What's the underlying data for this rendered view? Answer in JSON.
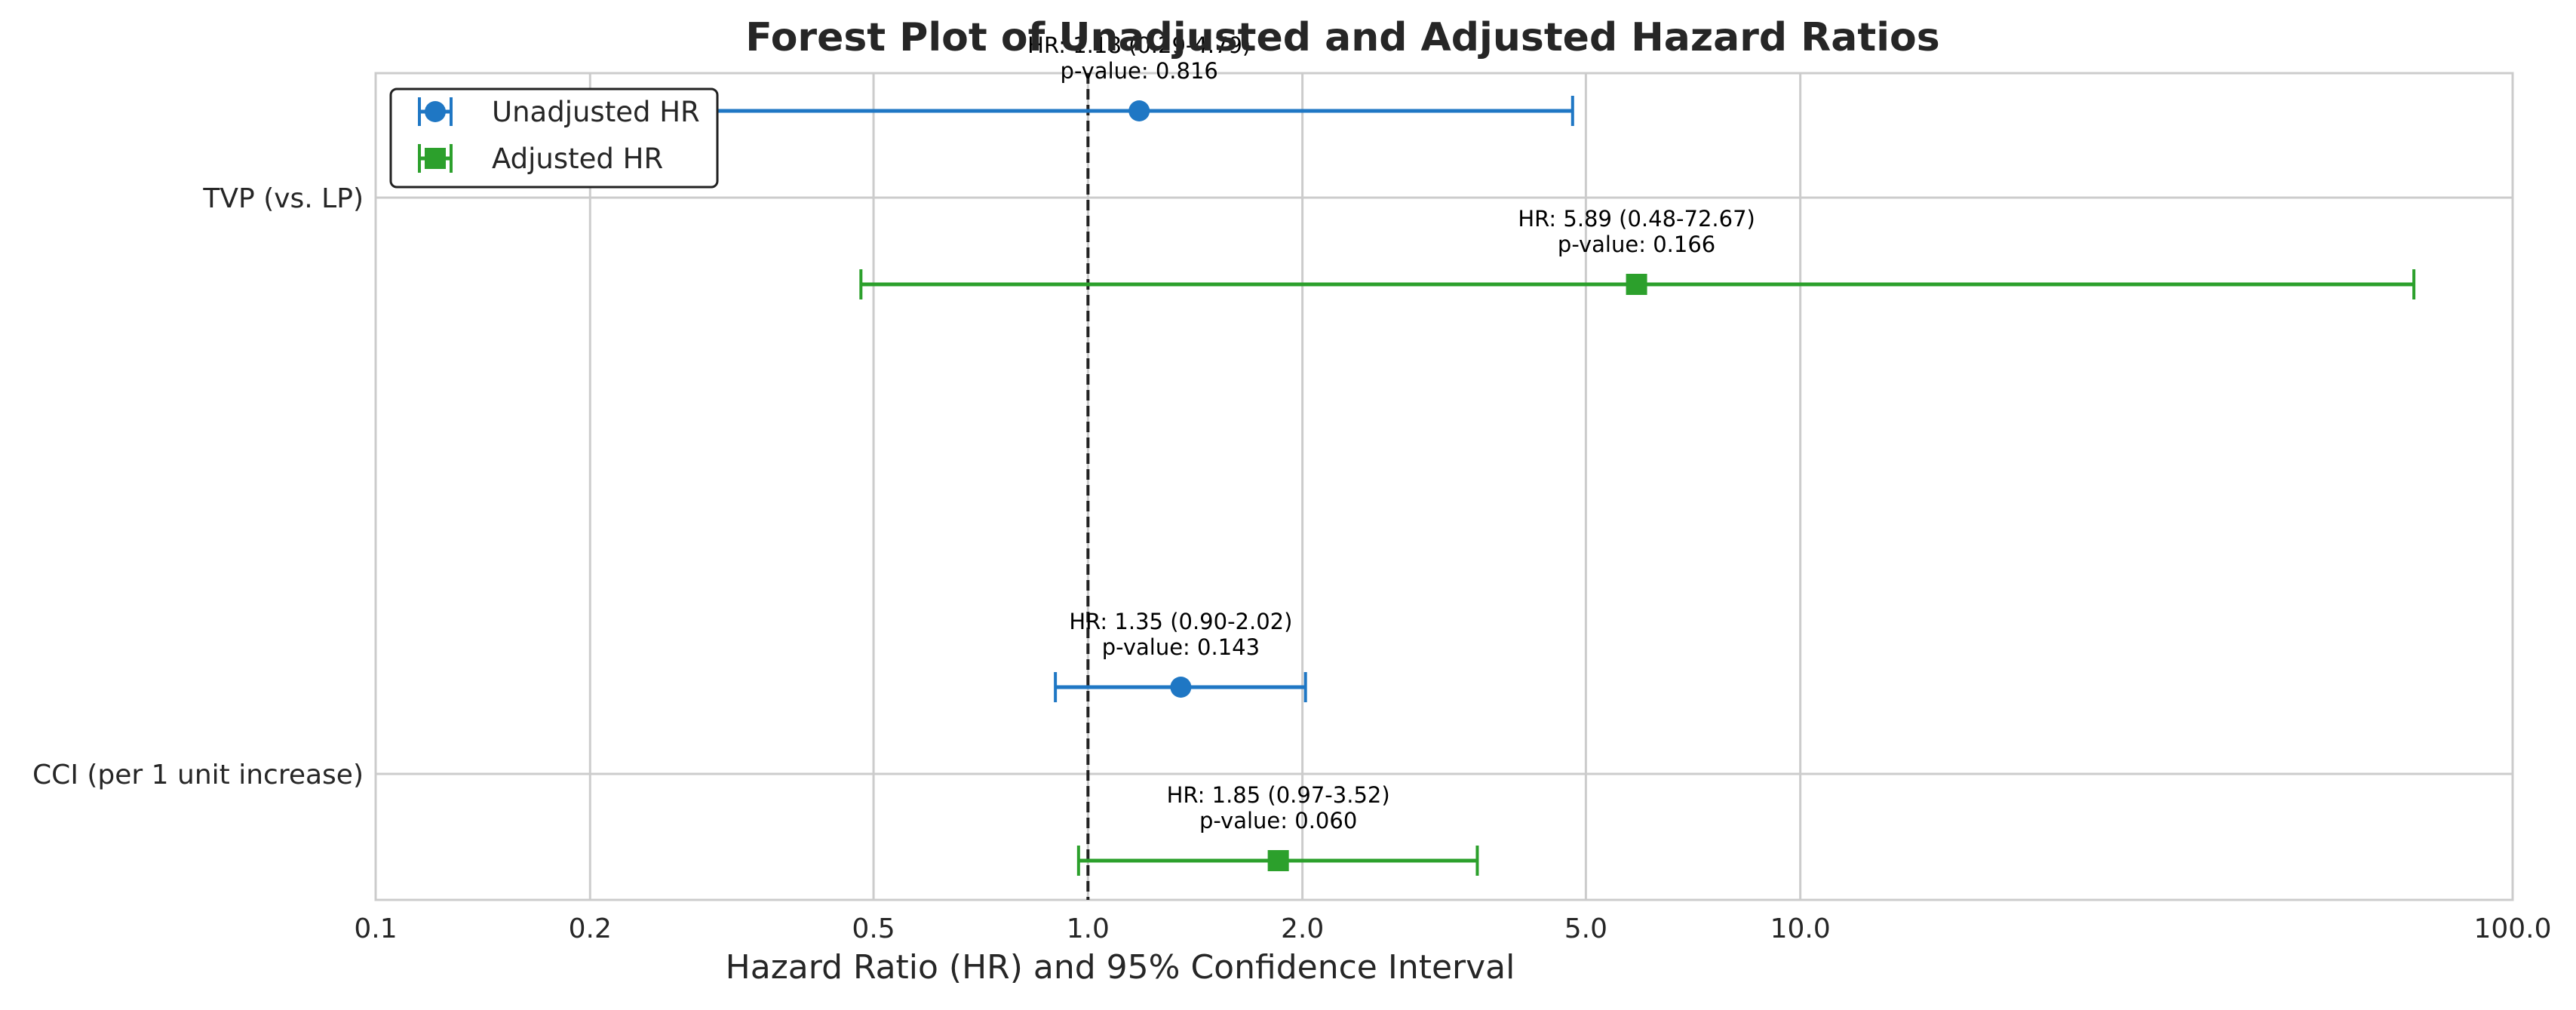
{
  "chart_data": {
    "type": "forest",
    "title": "Forest Plot of Unadjusted and Adjusted Hazard Ratios",
    "xlabel": "Hazard Ratio (HR) and 95% Confidence Interval",
    "x_scale": "log",
    "xlim": [
      0.1,
      100.0
    ],
    "x_ticks": [
      0.1,
      0.2,
      0.5,
      1.0,
      2.0,
      5.0,
      10.0,
      100.0
    ],
    "x_tick_labels": [
      "0.1",
      "0.2",
      "0.5",
      "1.0",
      "2.0",
      "5.0",
      "10.0",
      "100.0"
    ],
    "reference_line": 1.0,
    "grid": true,
    "legend_position": "top-left",
    "categories": [
      "TVP (vs. LP)",
      "CCI (per 1 unit increase)"
    ],
    "series": [
      {
        "name": "Unadjusted HR",
        "color": "#1f77c4",
        "marker": "circle",
        "points": [
          {
            "category": "TVP (vs. LP)",
            "hr": 1.18,
            "lower": 0.29,
            "upper": 4.79,
            "label": "HR: 1.18 (0.29-4.79)",
            "p_label": "p-value: 0.816"
          },
          {
            "category": "CCI (per 1 unit increase)",
            "hr": 1.35,
            "lower": 0.9,
            "upper": 2.02,
            "label": "HR: 1.35 (0.90-2.02)",
            "p_label": "p-value: 0.143"
          }
        ]
      },
      {
        "name": "Adjusted HR",
        "color": "#2ca02c",
        "marker": "square",
        "points": [
          {
            "category": "TVP (vs. LP)",
            "hr": 5.89,
            "lower": 0.48,
            "upper": 72.67,
            "label": "HR: 5.89 (0.48-72.67)",
            "p_label": "p-value: 0.166"
          },
          {
            "category": "CCI (per 1 unit increase)",
            "hr": 1.85,
            "lower": 0.97,
            "upper": 3.52,
            "label": "HR: 1.85 (0.97-3.52)",
            "p_label": "p-value: 0.060"
          }
        ]
      }
    ]
  }
}
